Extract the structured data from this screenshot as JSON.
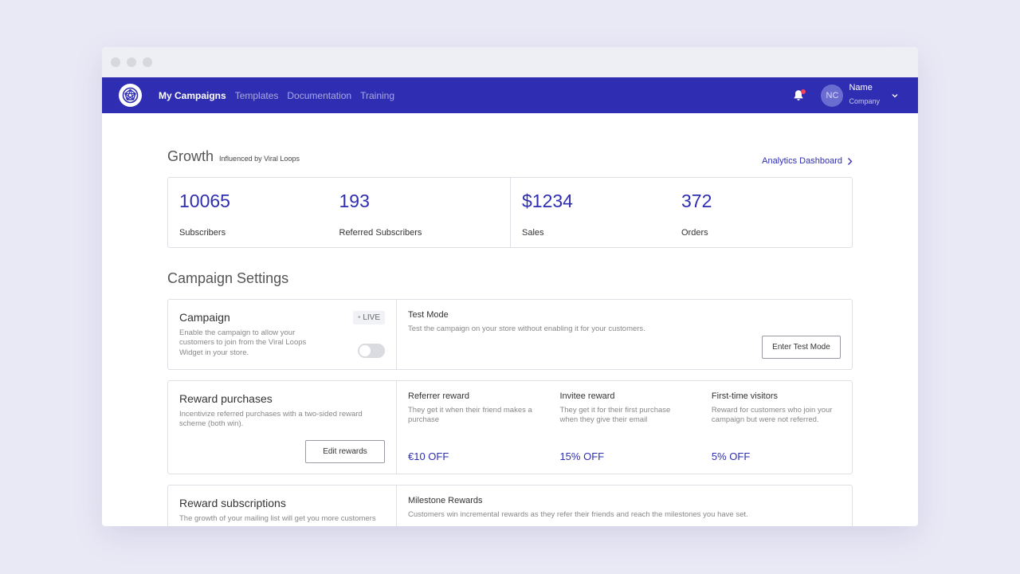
{
  "nav": {
    "links": [
      {
        "label": "My Campaigns",
        "active": true
      },
      {
        "label": "Templates",
        "active": false
      },
      {
        "label": "Documentation",
        "active": false
      },
      {
        "label": "Training",
        "active": false
      }
    ],
    "user": {
      "initials": "NC",
      "name": "Name",
      "company": "Company"
    }
  },
  "growth": {
    "title": "Growth",
    "subtitle": "Influenced by Viral Loops",
    "analytics_link": "Analytics Dashboard",
    "stats": [
      {
        "value": "10065",
        "label": "Subscribers"
      },
      {
        "value": "193",
        "label": "Referred Subscribers"
      },
      {
        "value": "$1234",
        "label": "Sales"
      },
      {
        "value": "372",
        "label": "Orders"
      }
    ]
  },
  "settings": {
    "title": "Campaign Settings",
    "campaign": {
      "title": "Campaign",
      "badge": "LIVE",
      "description": "Enable the campaign to allow your customers to join from the Viral Loops Widget in your store."
    },
    "test_mode": {
      "title": "Test Mode",
      "description": "Test the campaign on your store without enabling it for your customers.",
      "button": "Enter Test Mode"
    },
    "reward_purchases": {
      "title": "Reward purchases",
      "description": "Incentivize referred purchases with a two-sided reward scheme (both win).",
      "button": "Edit rewards",
      "rewards": [
        {
          "title": "Referrer reward",
          "description": "They get it when their friend makes a purchase",
          "value": "€10 OFF"
        },
        {
          "title": "Invitee reward",
          "description": "They get it for their first purchase when they give their email",
          "value": "15% OFF"
        },
        {
          "title": "First-time visitors",
          "description": "Reward for customers who join your campaign but were not referred.",
          "value": "5% OFF"
        }
      ]
    },
    "reward_subscriptions": {
      "title": "Reward subscriptions",
      "description": "The growth of your mailing list will get you more customers",
      "milestone_title": "Milestone Rewards",
      "milestone_description": "Customers win incremental rewards as they refer their friends and reach the milestones you have set."
    }
  },
  "colors": {
    "brand": "#2f2eb2",
    "notification": "#f2425c"
  }
}
